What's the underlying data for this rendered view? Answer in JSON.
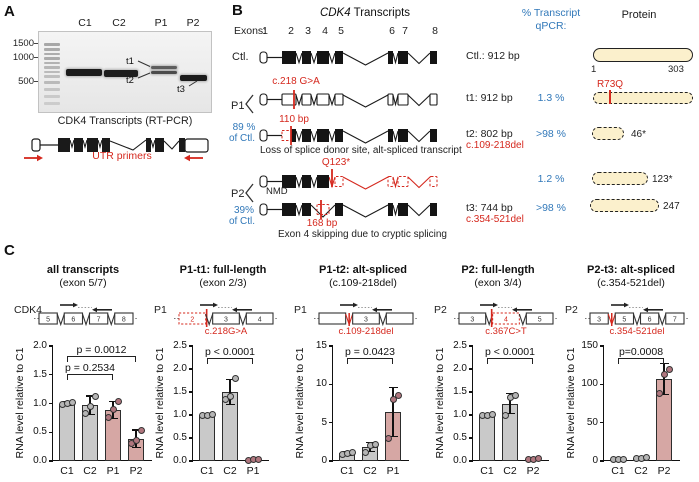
{
  "colors": {
    "blue": "#3178b9",
    "red": "#d5281e",
    "bar_gray": "#c9c9c9",
    "bar_rose": "#d6a7a4",
    "dot_gray": "#b5b5b5",
    "dot_rose": "#b0767e",
    "protein_fill": "#fbf0cc"
  },
  "panelA": {
    "label": "A",
    "lane_labels": [
      "C1",
      "C2",
      "P1",
      "P2"
    ],
    "marker_labels": [
      "1500",
      "1000",
      "500"
    ],
    "band_labels": [
      "t1",
      "t2",
      "t3"
    ],
    "caption": "CDK4 Transcripts  (RT-PCR)",
    "utr_label": "UTR primers"
  },
  "panelB": {
    "label": "B",
    "title_gene": "CDK4",
    "title_rest": " Transcripts",
    "exons_label": "Exons:",
    "exon_numbers": [
      "1",
      "2",
      "3",
      "4",
      "5",
      "6",
      "7",
      "8"
    ],
    "qpcr_header_1": "% Transcript",
    "qpcr_header_2": "qPCR:",
    "protein_header": "Protein",
    "ctl": {
      "row_label": "Ctl.",
      "size": "Ctl.: 912 bp",
      "aa_start": "1",
      "aa_end": "303"
    },
    "p1": {
      "label": "P1",
      "percent": "89 %",
      "of_ctl": "of Ctl."
    },
    "p2": {
      "label": "P2",
      "percent": "39%",
      "of_ctl": "of Ctl."
    },
    "t1": {
      "mutation": "c.218 G>A",
      "size": "t1: 912 bp",
      "qpcr": "1.3 %",
      "protein_mutation": "R73Q"
    },
    "t2": {
      "annotation": "110 bp",
      "size": "t2: 802 bp",
      "deletion": "c.109-218del",
      "qpcr": ">98 %",
      "protein_end": "46*",
      "caption": "Loss of splice donor site, alt-spliced transcript"
    },
    "nmd": {
      "label": "NMD",
      "mutation": "Q123*",
      "qpcr": "1.2 %",
      "protein_end": "123*"
    },
    "t3": {
      "annotation": "168 bp",
      "size": "t3: 744 bp",
      "deletion": "c.354-521del",
      "qpcr": ">98 %",
      "protein_end": "247",
      "caption": "Exon 4 skipping due to cryptic splicing"
    }
  },
  "panelC": {
    "label": "C"
  },
  "chart_data": [
    {
      "type": "bar",
      "title": "all transcripts",
      "subtitle": "(exon 5/7)",
      "gene": "CDK4",
      "mini": {
        "exons": [
          "5",
          "6",
          "7",
          "8"
        ],
        "caption": ""
      },
      "ylabel": "RNA level relative to C1",
      "ylim": [
        0,
        2.0
      ],
      "ytick": 0.5,
      "decimals": 1,
      "categories": [
        "C1",
        "C2",
        "P1",
        "P2"
      ],
      "values": [
        1.0,
        0.97,
        0.89,
        0.39
      ],
      "errors": [
        0.03,
        0.16,
        0.15,
        0.15
      ],
      "points": [
        [
          0.98,
          1.0,
          1.02
        ],
        [
          0.82,
          0.95,
          1.13
        ],
        [
          0.76,
          0.9,
          1.03
        ],
        [
          0.3,
          0.36,
          0.53
        ]
      ],
      "patient_from": 2,
      "brackets": [
        {
          "from": 0,
          "to": 2,
          "label": "p = 0.2534",
          "level": 1
        },
        {
          "from": 0,
          "to": 3,
          "label": "p = 0.0012",
          "level": 2
        }
      ]
    },
    {
      "type": "bar",
      "title": "P1-t1: full-length",
      "subtitle": "(exon 2/3)",
      "gene": "P1",
      "mini": {
        "exons": [
          "2",
          "3",
          "4"
        ],
        "red_exon": 0,
        "tick_edge": "right",
        "caption": "c.218G>A"
      },
      "ylabel": "RNA level relative to C1",
      "ylim": [
        0,
        2.5
      ],
      "ytick": 0.5,
      "decimals": 1,
      "categories": [
        "C1",
        "C2",
        "P1"
      ],
      "values": [
        1.0,
        1.5,
        0.03
      ],
      "errors": [
        0.02,
        0.27,
        0.02
      ],
      "points": [
        [
          0.99,
          1.0,
          1.01
        ],
        [
          1.33,
          1.4,
          1.8
        ],
        [
          0.02,
          0.03,
          0.04
        ]
      ],
      "patient_from": 2,
      "brackets": [
        {
          "from": 0,
          "to": 2,
          "label": "p < 0.0001",
          "level": 1
        }
      ]
    },
    {
      "type": "bar",
      "title": "P1-t2: alt-spliced",
      "subtitle": "(c.109-218del)",
      "gene": "P1",
      "mini": {
        "exons": [
          "",
          "3",
          ""
        ],
        "red_notch": 0,
        "caption": "c.109-218del"
      },
      "ylabel": "RNA level relative to C1",
      "ylim": [
        0,
        15
      ],
      "ytick": 5,
      "decimals": 0,
      "categories": [
        "C1",
        "C2",
        "P1"
      ],
      "values": [
        1.0,
        1.8,
        6.4
      ],
      "errors": [
        0.2,
        0.6,
        3.2
      ],
      "points": [
        [
          0.9,
          1.0,
          1.1
        ],
        [
          1.1,
          2.0,
          2.2
        ],
        [
          3.0,
          8.0,
          8.5
        ]
      ],
      "patient_from": 2,
      "brackets": [
        {
          "from": 0,
          "to": 2,
          "label": "p = 0.0423",
          "level": 1
        }
      ]
    },
    {
      "type": "bar",
      "title": "P2: full-length",
      "subtitle": "(exon 3/4)",
      "gene": "P2",
      "mini": {
        "exons": [
          "3",
          "4",
          "5"
        ],
        "red_exon": 1,
        "tick_edge": "left",
        "caption": "c.367C>T"
      },
      "ylabel": "RNA level relative to C1",
      "ylim": [
        0,
        2.5
      ],
      "ytick": 0.5,
      "decimals": 1,
      "categories": [
        "C1",
        "C2",
        "P2"
      ],
      "values": [
        1.0,
        1.25,
        0.04
      ],
      "errors": [
        0.02,
        0.22,
        0.02
      ],
      "points": [
        [
          0.99,
          1.0,
          1.01
        ],
        [
          1.0,
          1.38,
          1.42
        ],
        [
          0.03,
          0.04,
          0.05
        ]
      ],
      "patient_from": 2,
      "brackets": [
        {
          "from": 0,
          "to": 2,
          "label": "p < 0.0001",
          "level": 1
        }
      ]
    },
    {
      "type": "bar",
      "title": "P2-t3: alt-spliced",
      "subtitle": "(c.354-521del)",
      "gene": "P2",
      "mini": {
        "exons": [
          "3",
          "5",
          "6",
          "7"
        ],
        "red_notch": 0,
        "caption": "c.354-521del"
      },
      "ylabel": "RNA level relative to C1",
      "ylim": [
        0,
        150
      ],
      "ytick": 50,
      "decimals": 0,
      "categories": [
        "C1",
        "C2",
        "P2"
      ],
      "values": [
        2,
        3.5,
        107
      ],
      "errors": [
        1,
        1.5,
        20
      ],
      "points": [
        [
          2,
          2.2,
          2.4
        ],
        [
          3,
          3.3,
          4
        ],
        [
          88,
          113,
          120
        ]
      ],
      "patient_from": 2,
      "brackets": [
        {
          "from": 0,
          "to": 2,
          "label": "p=0.0008",
          "level": 1
        }
      ]
    }
  ]
}
